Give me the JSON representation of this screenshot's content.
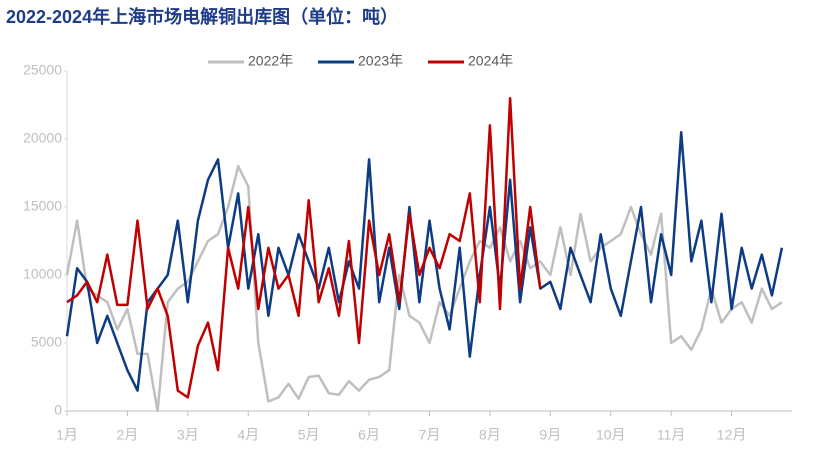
{
  "chart_data": {
    "type": "line",
    "title": "2022-2024年上海市场电解铜出库图（单位：吨）",
    "categories": [
      "1月",
      null,
      null,
      null,
      null,
      null,
      "2月",
      null,
      null,
      null,
      null,
      null,
      "3月",
      null,
      null,
      null,
      null,
      null,
      "4月",
      null,
      null,
      null,
      null,
      null,
      "5月",
      null,
      null,
      null,
      null,
      null,
      "6月",
      null,
      null,
      null,
      null,
      null,
      "7月",
      null,
      null,
      null,
      null,
      null,
      "8月",
      null,
      null,
      null,
      null,
      null,
      "9月",
      null,
      null,
      null,
      null,
      null,
      "10月",
      null,
      null,
      null,
      null,
      null,
      "11月",
      null,
      null,
      null,
      null,
      null,
      "12月",
      null,
      null,
      null,
      null,
      null
    ],
    "series": [
      {
        "name": "2022年",
        "color": "#bfbfbf",
        "values": [
          10000,
          14000,
          9000,
          8500,
          8000,
          6000,
          7500,
          4200,
          4200,
          0,
          8000,
          9000,
          9500,
          11000,
          12500,
          13000,
          15000,
          18000,
          16500,
          5000,
          700,
          1000,
          2000,
          900,
          2500,
          2600,
          1300,
          1200,
          2200,
          1500,
          2300,
          2500,
          3000,
          10000,
          7000,
          6500,
          5000,
          8000,
          7000,
          9000,
          11000,
          12500,
          12000,
          13500,
          11000,
          12500,
          10500,
          11000,
          10000,
          13500,
          10000,
          14500,
          11000,
          12000,
          12500,
          13000,
          15000,
          13000,
          11500,
          14500,
          5000,
          5500,
          4500,
          6000,
          9000,
          6500,
          7500,
          8000,
          6500,
          9000,
          7500,
          8000
        ]
      },
      {
        "name": "2023年",
        "color": "#0d3c84",
        "values": [
          5500,
          10500,
          9500,
          5000,
          7000,
          5000,
          3000,
          1500,
          8000,
          9000,
          10000,
          14000,
          8000,
          14000,
          17000,
          18500,
          12000,
          16000,
          9000,
          13000,
          7000,
          12000,
          10000,
          13000,
          11000,
          9000,
          12000,
          8000,
          11000,
          9000,
          18500,
          8000,
          12000,
          7500,
          15000,
          8000,
          14000,
          9000,
          6000,
          12000,
          4000,
          10000,
          15000,
          9000,
          17000,
          8000,
          13500,
          9000,
          9500,
          7500,
          12000,
          10000,
          8000,
          13000,
          9000,
          7000,
          11000,
          15000,
          8000,
          13000,
          10000,
          20500,
          11000,
          14000,
          8000,
          14500,
          7500,
          12000,
          9000,
          11500,
          8500,
          12000
        ]
      },
      {
        "name": "2024年",
        "color": "#c00000",
        "values": [
          8000,
          8500,
          9500,
          8000,
          11500,
          7800,
          7800,
          14000,
          7500,
          9000,
          7000,
          1500,
          1000,
          4800,
          6500,
          3000,
          12000,
          9000,
          15000,
          7500,
          12000,
          9000,
          10000,
          7000,
          15500,
          8000,
          10500,
          7000,
          12500,
          5000,
          14000,
          10000,
          13000,
          8000,
          14500,
          10000,
          12000,
          10500,
          13000,
          12500,
          16000,
          8000,
          21000,
          7500,
          23000,
          9000,
          15000,
          9000,
          null,
          null,
          null,
          null,
          null,
          null,
          null,
          null,
          null,
          null,
          null,
          null,
          null,
          null,
          null,
          null,
          null,
          null,
          null,
          null,
          null,
          null,
          null,
          null
        ]
      }
    ],
    "ylim": [
      0,
      25000
    ],
    "yticks": [
      0,
      5000,
      10000,
      15000,
      20000,
      25000
    ]
  }
}
